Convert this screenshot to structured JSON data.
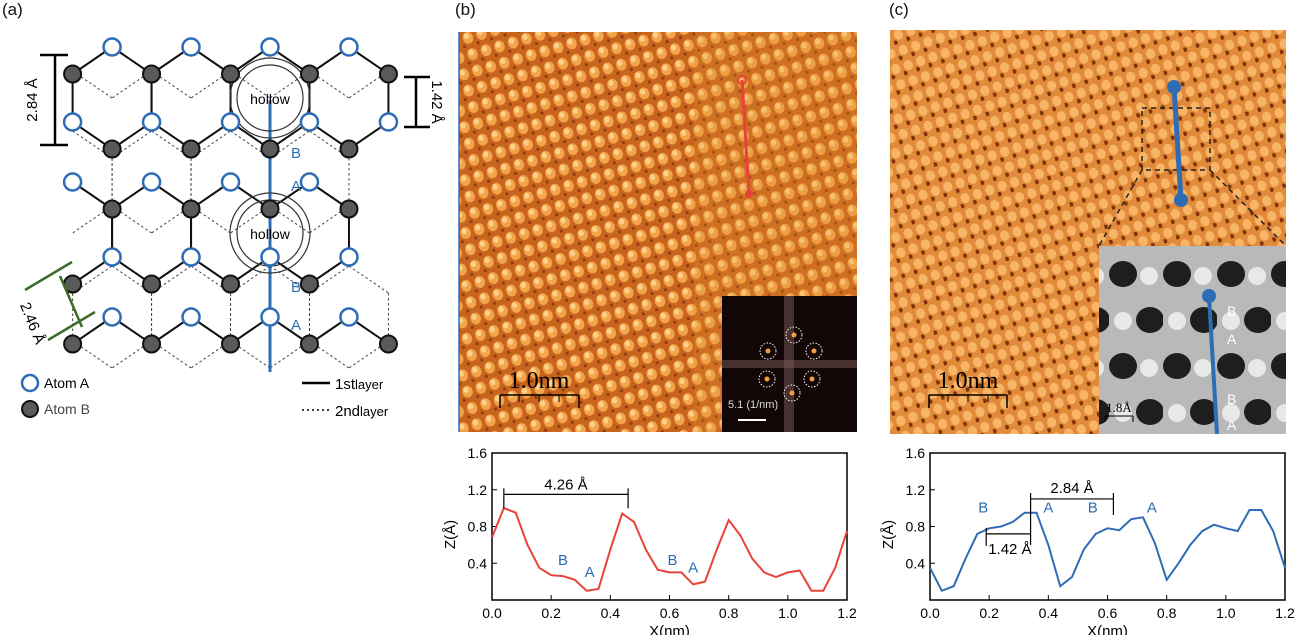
{
  "panels": {
    "a": {
      "label": "(a)"
    },
    "b": {
      "label": "(b)"
    },
    "c": {
      "label": "(c)"
    }
  },
  "lattice": {
    "dim_284": "2.84 Å",
    "dim_142": "1.42 Å",
    "dim_246": "2.46 Å",
    "hollow_label": "hollow",
    "site_b": "B",
    "site_a": "A",
    "legend": {
      "atom_a": "Atom A",
      "atom_b": "Atom B",
      "layer1_main": "1st",
      "layer1_sub": "layer",
      "layer2_main": "2nd",
      "layer2_sub": "layer"
    },
    "colors": {
      "atom_a": "#2e6db5",
      "atom_b": "#5a5a5a",
      "cut_line": "#2e6db5",
      "dim_green": "#3d6b2a"
    }
  },
  "stm_b": {
    "scalebar": "1.0nm",
    "fft_label": "5.1 (1/nm)",
    "line_color": "#e8423a"
  },
  "stm_c": {
    "scalebar": "1.0nm",
    "inset_scalebar": "1.8Å",
    "inset_labels": [
      "B",
      "A",
      "B",
      "A"
    ],
    "line_color": "#2e6db5"
  },
  "chart_data": [
    {
      "type": "line",
      "xlabel": "X(nm)",
      "ylabel": "Z(Å)",
      "xlim": [
        0.0,
        1.2
      ],
      "ylim": [
        0.0,
        1.6
      ],
      "xticks": [
        "0.0",
        "0.2",
        "0.4",
        "0.6",
        "0.8",
        "1.0",
        "1.2"
      ],
      "yticks": [
        "0.4",
        "0.8",
        "1.2",
        "1.6"
      ],
      "color": "#e8423a",
      "series": [
        {
          "x": [
            0.0,
            0.04,
            0.08,
            0.12,
            0.16,
            0.2,
            0.24,
            0.28,
            0.32,
            0.36,
            0.4,
            0.44,
            0.48,
            0.52,
            0.56,
            0.6,
            0.64,
            0.68,
            0.72,
            0.76,
            0.8,
            0.84,
            0.88,
            0.92,
            0.96,
            1.0,
            1.04,
            1.08,
            1.12,
            1.16,
            1.2
          ],
          "values": [
            0.68,
            1.0,
            0.95,
            0.6,
            0.35,
            0.27,
            0.26,
            0.22,
            0.1,
            0.12,
            0.55,
            0.94,
            0.85,
            0.55,
            0.33,
            0.3,
            0.3,
            0.17,
            0.2,
            0.55,
            0.87,
            0.7,
            0.45,
            0.3,
            0.25,
            0.3,
            0.32,
            0.1,
            0.1,
            0.35,
            0.75
          ]
        }
      ],
      "annotations": {
        "bracket": "4.26 Å",
        "labels": [
          "B",
          "A",
          "B",
          "A"
        ]
      }
    },
    {
      "type": "line",
      "xlabel": "X(nm)",
      "ylabel": "Z(Å)",
      "xlim": [
        0.0,
        1.2
      ],
      "ylim": [
        0.0,
        1.6
      ],
      "xticks": [
        "0.0",
        "0.2",
        "0.4",
        "0.6",
        "0.8",
        "1.0",
        "1.2"
      ],
      "yticks": [
        "0.4",
        "0.8",
        "1.2",
        "1.6"
      ],
      "color": "#2e6db5",
      "series": [
        {
          "x": [
            0.0,
            0.04,
            0.08,
            0.12,
            0.16,
            0.2,
            0.24,
            0.28,
            0.32,
            0.36,
            0.4,
            0.44,
            0.48,
            0.52,
            0.56,
            0.6,
            0.64,
            0.68,
            0.72,
            0.76,
            0.8,
            0.84,
            0.88,
            0.92,
            0.96,
            1.0,
            1.04,
            1.08,
            1.12,
            1.16,
            1.2
          ],
          "values": [
            0.35,
            0.1,
            0.15,
            0.45,
            0.72,
            0.78,
            0.8,
            0.85,
            0.95,
            0.95,
            0.6,
            0.15,
            0.25,
            0.55,
            0.72,
            0.78,
            0.76,
            0.88,
            0.9,
            0.62,
            0.22,
            0.4,
            0.6,
            0.75,
            0.82,
            0.78,
            0.75,
            0.98,
            0.98,
            0.75,
            0.35
          ]
        }
      ],
      "annotations": {
        "bracket_top": "2.84 Å",
        "bracket_bottom": "1.42 Å",
        "labels": [
          "B",
          "A",
          "B",
          "A"
        ]
      }
    }
  ]
}
